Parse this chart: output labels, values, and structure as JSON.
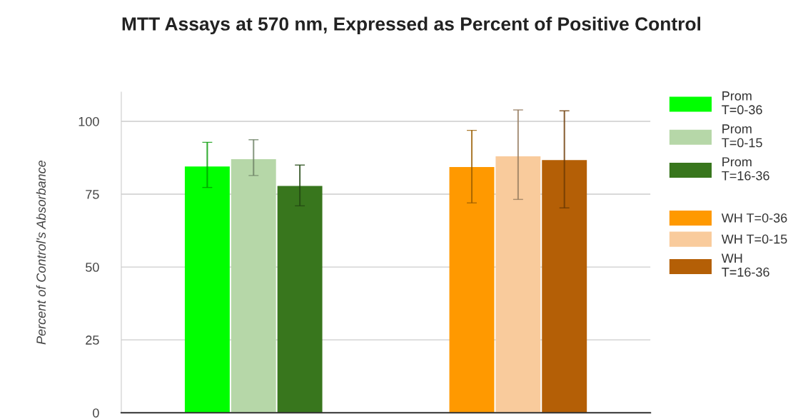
{
  "chart_data": {
    "type": "bar",
    "title": "MTT Assays at 570 nm, Expressed as Percent of Positive Control",
    "ylabel": "Percent of Control's Absorbance",
    "categories": [
      null,
      null
    ],
    "series": [
      {
        "name": "Prom T=0-36",
        "color": "#00ff00",
        "values": [
          84.5,
          null
        ],
        "errors": [
          [
            77.3,
            92.8
          ],
          null
        ]
      },
      {
        "name": "Prom T=0-15",
        "color": "#b6d7a8",
        "values": [
          87,
          null
        ],
        "errors": [
          [
            81.4,
            93.7
          ],
          null
        ]
      },
      {
        "name": "Prom T=16-36",
        "color": "#38761d",
        "values": [
          77.8,
          null
        ],
        "errors": [
          [
            71,
            85
          ],
          null
        ]
      },
      {
        "name": "WH T=0-36",
        "color": "#ff9900",
        "values": [
          null,
          84.3
        ],
        "errors": [
          null,
          [
            72,
            96.9
          ]
        ]
      },
      {
        "name": "WH T=0-15",
        "color": "#f9cb9c",
        "values": [
          null,
          88
        ],
        "errors": [
          null,
          [
            73.2,
            103.9
          ]
        ]
      },
      {
        "name": "WH T=16-36",
        "color": "#b45f06",
        "values": [
          null,
          86.7
        ],
        "errors": [
          null,
          [
            70.3,
            103.6
          ]
        ]
      }
    ],
    "ylim": [
      0,
      110
    ],
    "yticks": [
      0,
      25,
      50,
      75,
      100
    ],
    "grid": "y",
    "legend": "right"
  }
}
